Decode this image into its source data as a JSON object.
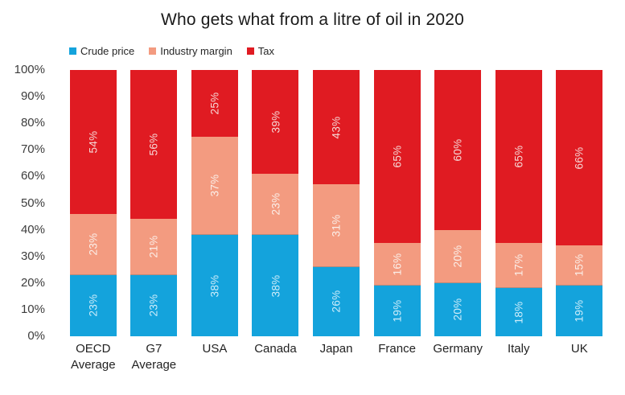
{
  "title": "Who gets what from a litre of oil in 2020",
  "chart_data": {
    "type": "bar",
    "subtype": "stacked-100-percent",
    "title": "Who gets what from a litre of oil in 2020",
    "xlabel": "",
    "ylabel": "",
    "ylim": [
      0,
      100
    ],
    "grid": false,
    "legend_position": "top-left",
    "data_label_style": "rotated-90-inside-segment",
    "y_tick_values": [
      0,
      10,
      20,
      30,
      40,
      50,
      60,
      70,
      80,
      90,
      100
    ],
    "y_tick_labels": [
      "0%",
      "10%",
      "20%",
      "30%",
      "40%",
      "50%",
      "60%",
      "70%",
      "80%",
      "90%",
      "100%"
    ],
    "categories": [
      "OECD Average",
      "G7 Average",
      "USA",
      "Canada",
      "Japan",
      "France",
      "Germany",
      "Italy",
      "UK"
    ],
    "series": [
      {
        "name": "Crude price",
        "color": "#14A3DC",
        "label_color": "#CFEDFA",
        "values": [
          23,
          23,
          38,
          38,
          26,
          19,
          20,
          18,
          19
        ]
      },
      {
        "name": "Industry margin",
        "color": "#F39B80",
        "label_color": "#FBEFE9",
        "values": [
          23,
          21,
          37,
          23,
          31,
          16,
          20,
          17,
          15
        ]
      },
      {
        "name": "Tax",
        "color": "#E01B22",
        "label_color": "#F6D8D6",
        "values": [
          54,
          56,
          25,
          39,
          43,
          65,
          60,
          65,
          66
        ]
      }
    ],
    "value_suffix": "%"
  },
  "colors": {
    "background": "#ffffff",
    "title_text": "#1a1a1a",
    "axis_text": "#3d3d3d",
    "category_text": "#222222"
  }
}
